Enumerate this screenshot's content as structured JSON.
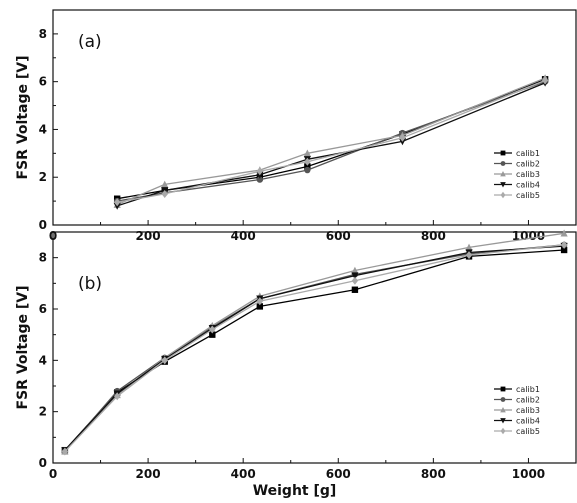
{
  "chart_data": [
    {
      "type": "line",
      "panel_label": "(a)",
      "xlabel": "",
      "ylabel": "FSR Voltage [V]",
      "xlim": [
        0,
        1100
      ],
      "ylim": [
        0,
        9
      ],
      "x_ticks": [
        0,
        200,
        400,
        600,
        800,
        1000
      ],
      "y_ticks": [
        0,
        2,
        4,
        6,
        8
      ],
      "grid": false,
      "legend_position": "right-middle",
      "series": [
        {
          "name": "calib1",
          "color": "#000000",
          "marker": "square",
          "x": [
            135,
            235,
            435,
            535,
            735,
            1035
          ],
          "y": [
            1.1,
            1.45,
            2.0,
            2.45,
            3.8,
            6.1
          ]
        },
        {
          "name": "calib2",
          "color": "#555555",
          "marker": "circle",
          "x": [
            135,
            235,
            435,
            535,
            735,
            1035
          ],
          "y": [
            1.0,
            1.35,
            1.9,
            2.3,
            3.85,
            6.0
          ]
        },
        {
          "name": "calib3",
          "color": "#999999",
          "marker": "triangle-up",
          "x": [
            135,
            235,
            435,
            535,
            735,
            1035
          ],
          "y": [
            0.85,
            1.7,
            2.3,
            3.0,
            3.75,
            6.15
          ]
        },
        {
          "name": "calib4",
          "color": "#111111",
          "marker": "triangle-down",
          "x": [
            135,
            235,
            435,
            535,
            735,
            1035
          ],
          "y": [
            0.8,
            1.45,
            2.1,
            2.75,
            3.5,
            5.95
          ]
        },
        {
          "name": "calib5",
          "color": "#aaaaaa",
          "marker": "diamond",
          "x": [
            135,
            235,
            435,
            535,
            735,
            1035
          ],
          "y": [
            0.95,
            1.3,
            2.25,
            2.65,
            3.65,
            6.05
          ]
        }
      ]
    },
    {
      "type": "line",
      "panel_label": "(b)",
      "xlabel": "Weight [g]",
      "ylabel": "FSR Voltage [V]",
      "xlim": [
        0,
        1100
      ],
      "ylim": [
        0,
        9
      ],
      "x_ticks": [
        0,
        200,
        400,
        600,
        800,
        1000
      ],
      "y_ticks": [
        0,
        2,
        4,
        6,
        8
      ],
      "grid": false,
      "legend_position": "right-lower",
      "series": [
        {
          "name": "calib1",
          "color": "#000000",
          "marker": "square",
          "x": [
            25,
            135,
            235,
            335,
            435,
            635,
            875,
            1075
          ],
          "y": [
            0.5,
            2.75,
            3.95,
            5.0,
            6.1,
            6.75,
            8.05,
            8.3
          ]
        },
        {
          "name": "calib2",
          "color": "#555555",
          "marker": "circle",
          "x": [
            25,
            135,
            235,
            335,
            435,
            635,
            875,
            1075
          ],
          "y": [
            0.45,
            2.8,
            4.1,
            5.3,
            6.4,
            7.35,
            8.15,
            8.5
          ]
        },
        {
          "name": "calib3",
          "color": "#999999",
          "marker": "triangle-up",
          "x": [
            25,
            135,
            235,
            335,
            435,
            635,
            875,
            1075
          ],
          "y": [
            0.45,
            2.65,
            4.1,
            5.35,
            6.5,
            7.5,
            8.4,
            8.95
          ]
        },
        {
          "name": "calib4",
          "color": "#111111",
          "marker": "triangle-down",
          "x": [
            25,
            135,
            235,
            335,
            435,
            635,
            875,
            1075
          ],
          "y": [
            0.5,
            2.7,
            4.05,
            5.25,
            6.4,
            7.3,
            8.2,
            8.45
          ]
        },
        {
          "name": "calib5",
          "color": "#aaaaaa",
          "marker": "diamond",
          "x": [
            25,
            135,
            235,
            335,
            435,
            635,
            875,
            1075
          ],
          "y": [
            0.45,
            2.6,
            4.0,
            5.2,
            6.3,
            7.1,
            8.1,
            8.5
          ]
        }
      ]
    }
  ]
}
